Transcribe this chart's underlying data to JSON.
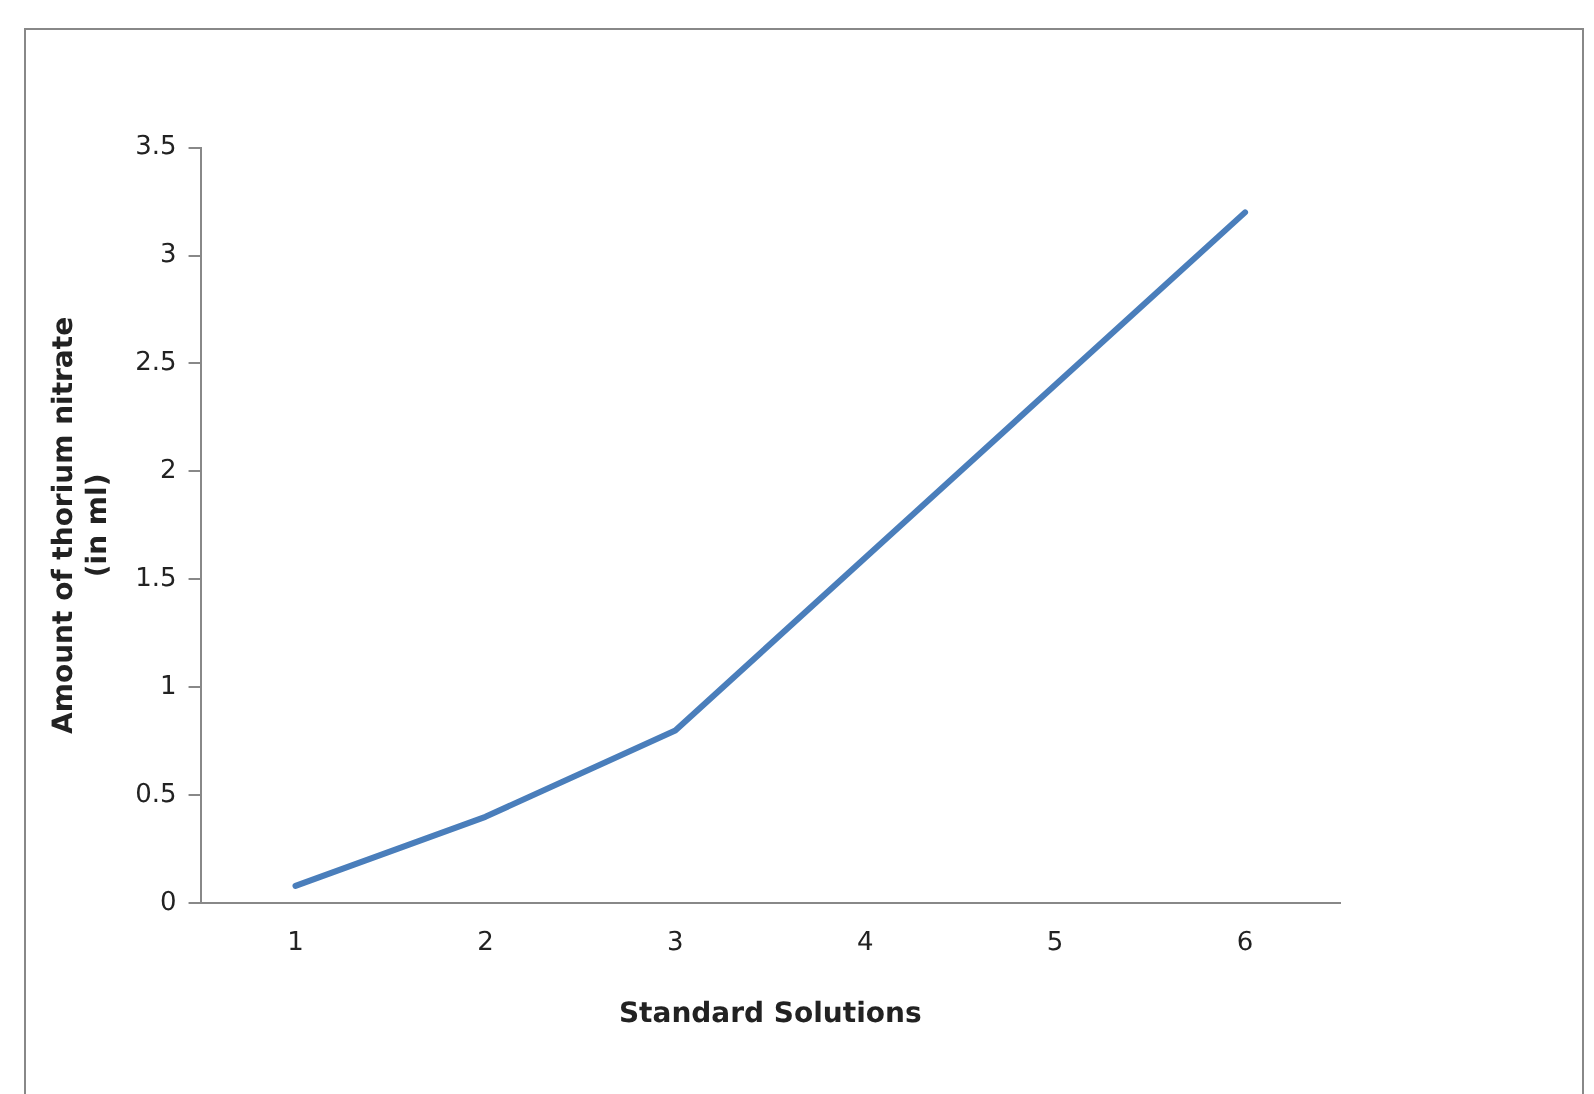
{
  "chart_data": {
    "type": "line",
    "xlabel": "Standard Solutions",
    "ylabel": "Amount of thorium nitrate\n(in ml)",
    "categories": [
      "1",
      "2",
      "3",
      "4",
      "5",
      "6"
    ],
    "series": [
      {
        "color": "#4a7ebb",
        "values": [
          0.08,
          0.4,
          0.8,
          1.6,
          2.4,
          3.2
        ]
      }
    ],
    "ylim": [
      0,
      3.5
    ],
    "yticks": [
      0,
      0.5,
      1,
      1.5,
      2,
      2.5,
      3,
      3.5
    ],
    "grid": false,
    "legend": false,
    "marker": "none",
    "line_style": "solid"
  }
}
